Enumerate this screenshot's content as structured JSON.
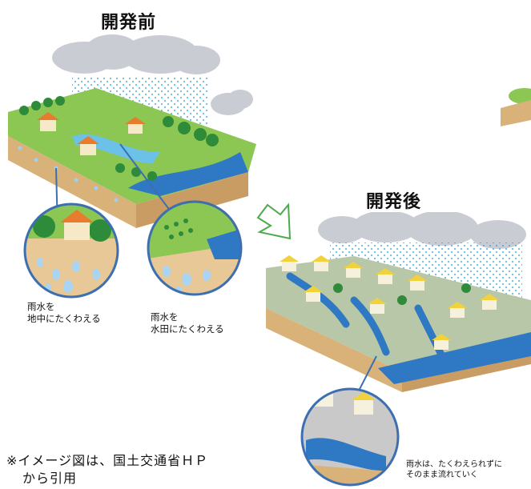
{
  "before": {
    "title": "開発前",
    "caption_left": [
      "雨水を",
      "地中にたくわえる"
    ],
    "caption_right": [
      "雨水を",
      "水田にたくわえる"
    ]
  },
  "after": {
    "title": "開発後",
    "caption": [
      "雨水は、たくわえられずに",
      "そのまま流れていく"
    ]
  },
  "note": [
    "※イメージ図は、国土交通省ＨＰ",
    "から引用"
  ],
  "colors": {
    "cloud": "#c9ccd2",
    "rain": "#3aa0d8",
    "grass": "#6fb53a",
    "soil": "#d9b27a",
    "water": "#2f78c4",
    "house_roof_orange": "#e87c2c",
    "house_roof_yellow": "#f2d23c",
    "circle_border": "#3d6fb0"
  }
}
